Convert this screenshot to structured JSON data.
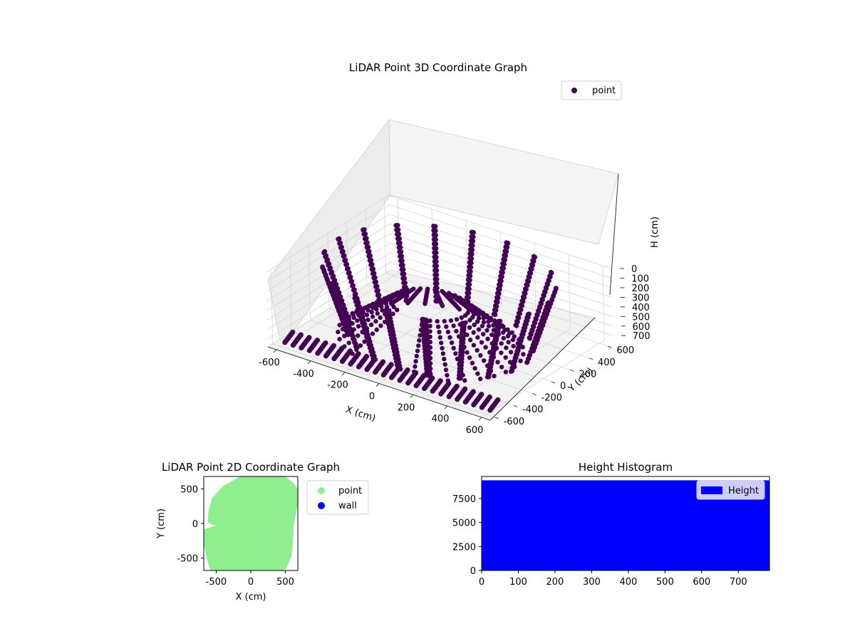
{
  "chart_data": [
    {
      "type": "scatter",
      "title": "LiDAR Point 3D Coordinate Graph",
      "xlabel": "X (cm)",
      "ylabel": "Y (cm)",
      "zlabel": "H (cm)",
      "xlim": [
        -650,
        650
      ],
      "ylim": [
        -650,
        650
      ],
      "zlim": [
        780,
        0
      ],
      "xticks": [
        "-600",
        "-400",
        "-200",
        "0",
        "200",
        "400",
        "600"
      ],
      "yticks": [
        "-600",
        "-400",
        "-200",
        "0",
        "200",
        "400",
        "600"
      ],
      "zticks": [
        "0",
        "100",
        "200",
        "300",
        "400",
        "500",
        "600",
        "700"
      ],
      "grid": true,
      "legend": {
        "position": "top-right",
        "entries": [
          "point"
        ]
      },
      "series": [
        {
          "name": "point",
          "color": "#440154",
          "marker": "circle",
          "shape": "ring-cylinder-scan",
          "x_range": [
            -650,
            650
          ],
          "y_range": [
            -650,
            650
          ],
          "h_range": [
            0,
            760
          ]
        }
      ]
    },
    {
      "type": "scatter",
      "title": "LiDAR Point 2D Coordinate Graph",
      "xlabel": "X (cm)",
      "ylabel": "Y (cm)",
      "xlim": [
        -680,
        680
      ],
      "ylim": [
        -680,
        680
      ],
      "xticks": [
        "-500",
        "0",
        "500"
      ],
      "yticks": [
        "-500",
        "0",
        "500"
      ],
      "legend": {
        "position": "outside-right",
        "entries": [
          "point",
          "wall"
        ]
      },
      "series": [
        {
          "name": "point",
          "color": "#90ee90",
          "marker": "circle"
        },
        {
          "name": "wall",
          "color": "#0000ff",
          "marker": "circle"
        }
      ]
    },
    {
      "type": "bar",
      "title": "Height Histogram",
      "xlim": [
        0,
        785
      ],
      "ylim": [
        0,
        9800
      ],
      "xticks": [
        "0",
        "100",
        "200",
        "300",
        "400",
        "500",
        "600",
        "700"
      ],
      "yticks": [
        "0",
        "2500",
        "5000",
        "7500"
      ],
      "legend": {
        "position": "top-right",
        "entries": [
          "Height"
        ]
      },
      "series": [
        {
          "name": "Height",
          "color": "#0000ff",
          "bin_range": [
            0,
            785
          ],
          "count": 9400
        }
      ]
    }
  ]
}
